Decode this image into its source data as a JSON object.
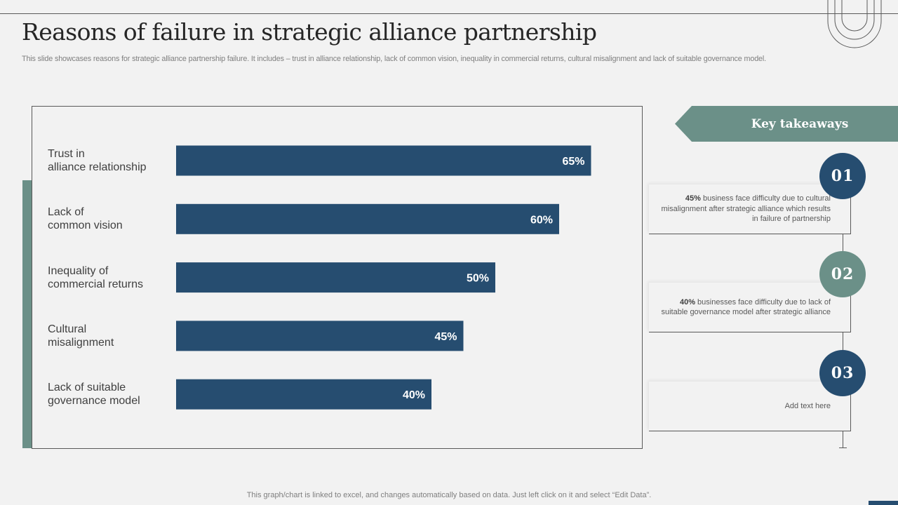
{
  "header": {
    "title": "Reasons of failure in strategic alliance partnership",
    "subtitle": "This slide showcases reasons for strategic alliance partnership failure. It includes – trust in alliance relationship, lack of common vision, inequality in commercial returns, cultural misalignment and lack of suitable governance model."
  },
  "chart_data": {
    "type": "bar",
    "orientation": "horizontal",
    "categories": [
      [
        "Trust in",
        "alliance relationship"
      ],
      [
        "Lack of",
        "common vision"
      ],
      [
        "Inequality  of",
        "commercial returns"
      ],
      [
        "Cultural",
        "misalignment"
      ],
      [
        "Lack of suitable",
        "governance model"
      ]
    ],
    "values": [
      65,
      60,
      50,
      45,
      40
    ],
    "value_labels": [
      "65%",
      "60%",
      "50%",
      "45%",
      "40%"
    ],
    "xlim": [
      0,
      100
    ],
    "bar_color": "#264d70",
    "label_color": "#ffffff",
    "title": "",
    "xlabel": "",
    "ylabel": ""
  },
  "takeaways": {
    "title": "Key takeaways",
    "banner_color": "#6b9088",
    "items": [
      {
        "number": "01",
        "circle_color": "#264d70",
        "highlight": "45%",
        "text": " business face difficulty due to cultural misalignment after strategic alliance which results in failure of partnership"
      },
      {
        "number": "02",
        "circle_color": "#6b9088",
        "highlight": "40%",
        "text": " businesses face difficulty due to lack of suitable governance model after strategic alliance"
      },
      {
        "number": "03",
        "circle_color": "#264d70",
        "highlight": "",
        "text": "Add text here"
      }
    ]
  },
  "footer": {
    "note": "This graph/chart is linked to excel,  and changes automatically based on data. Just left click on it and select “Edit Data”."
  }
}
